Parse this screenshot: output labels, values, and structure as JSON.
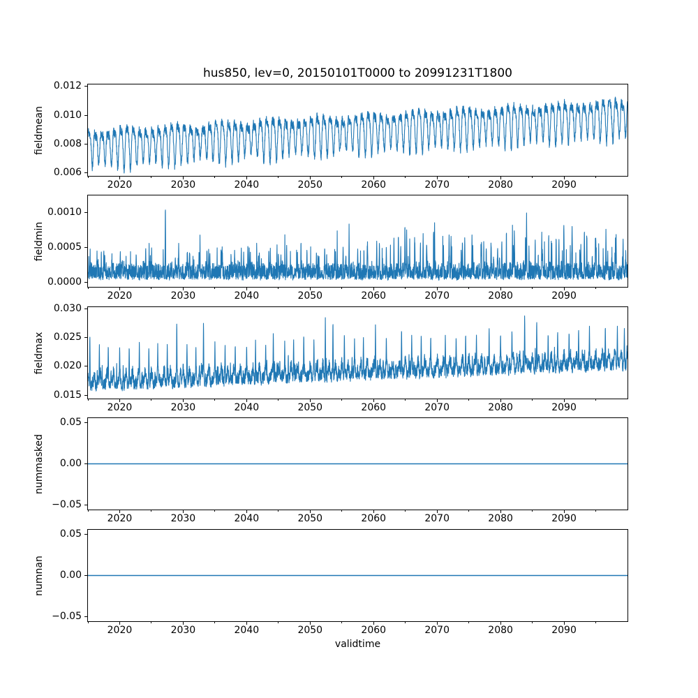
{
  "chart_data": {
    "type": "line",
    "title": "hus850, lev=0, 20150101T0000 to 20991231T1800",
    "xlabel": "validtime",
    "x_range": [
      2015,
      2100
    ],
    "x_major_ticks": [
      2020,
      2030,
      2040,
      2050,
      2060,
      2070,
      2080,
      2090
    ],
    "x_major_tick_labels": [
      "2020",
      "2030",
      "2040",
      "2050",
      "2060",
      "2070",
      "2080",
      "2090"
    ],
    "x_minor_tick_years": [
      2015,
      2025,
      2035,
      2045,
      2055,
      2065,
      2075,
      2085,
      2095
    ],
    "line_color": "#1f77b4",
    "axis_color": "#000000",
    "background_color": "#ffffff",
    "grid": false,
    "legend": null,
    "subplots": [
      {
        "ylabel": "fieldmean",
        "ylim": [
          0.00578,
          0.01214
        ],
        "yticks": [
          0.006,
          0.008,
          0.01,
          0.012
        ],
        "ytick_labels": [
          "0.006",
          "0.008",
          "0.010",
          "0.012"
        ],
        "series": {
          "kind": "seasonal_trend",
          "period_years": 1,
          "start_mean": 0.0079,
          "end_mean": 0.01,
          "annual_amplitude": 0.00115,
          "harmonic_amplitude": 0.00042,
          "noise": 0.00032,
          "annual_envelope_by_decade": {
            "years": [
              2015,
              2025,
              2035,
              2045,
              2055,
              2065,
              2075,
              2085,
              2095
            ],
            "trough": [
              0.0062,
              0.0063,
              0.0062,
              0.0066,
              0.0069,
              0.0071,
              0.0074,
              0.0077,
              0.0079
            ],
            "peak": [
              0.0096,
              0.0097,
              0.0099,
              0.0102,
              0.0105,
              0.011,
              0.0112,
              0.0115,
              0.0119
            ]
          }
        }
      },
      {
        "ylabel": "fieldmin",
        "ylim": [
          -6.5e-05,
          0.001245
        ],
        "yticks": [
          0.0,
          0.0005,
          0.001
        ],
        "ytick_labels": [
          "0.0000",
          "0.0005",
          "0.0010"
        ],
        "series": {
          "kind": "spiky_floor",
          "band": [
            0.0,
            0.0003
          ],
          "spike_growth_factor": 1.9,
          "notable_spikes": [
            [
              2017.5,
              0.00049
            ],
            [
              2020.1,
              0.00046
            ],
            [
              2022.6,
              0.00044
            ],
            [
              2024.1,
              0.00053
            ],
            [
              2027.2,
              0.00119
            ],
            [
              2029.3,
              0.00056
            ],
            [
              2031.0,
              0.00045
            ],
            [
              2032.5,
              0.00048
            ],
            [
              2034.2,
              0.00044
            ],
            [
              2036.0,
              0.0005
            ],
            [
              2038.1,
              0.00046
            ],
            [
              2040.2,
              0.00058
            ],
            [
              2042.0,
              0.00045
            ],
            [
              2043.5,
              0.0005
            ],
            [
              2045.0,
              0.00044
            ],
            [
              2046.3,
              0.00057
            ],
            [
              2048.0,
              0.00043
            ],
            [
              2049.5,
              0.00048
            ],
            [
              2051.0,
              0.00046
            ],
            [
              2052.3,
              0.00054
            ],
            [
              2054.0,
              0.00047
            ],
            [
              2055.2,
              0.00054
            ],
            [
              2057.5,
              0.0005
            ],
            [
              2059.0,
              0.00052
            ],
            [
              2060.5,
              0.00062
            ],
            [
              2062.0,
              0.00055
            ],
            [
              2063.2,
              0.00065
            ],
            [
              2065.2,
              0.00079
            ],
            [
              2066.5,
              0.00058
            ],
            [
              2067.8,
              0.0007
            ],
            [
              2069.6,
              0.0009
            ],
            [
              2071.0,
              0.0006
            ],
            [
              2072.2,
              0.00066
            ],
            [
              2074.0,
              0.00058
            ],
            [
              2075.5,
              0.00068
            ],
            [
              2077.0,
              0.0006
            ],
            [
              2078.5,
              0.00062
            ],
            [
              2080.2,
              0.00064
            ],
            [
              2082.0,
              0.0006
            ],
            [
              2084.1,
              0.00102
            ],
            [
              2086.5,
              0.00072
            ],
            [
              2088.0,
              0.00062
            ],
            [
              2089.2,
              0.00066
            ],
            [
              2091.3,
              0.0007
            ],
            [
              2093.2,
              0.00082
            ],
            [
              2095.0,
              0.0007
            ],
            [
              2096.6,
              0.00078
            ],
            [
              2098.2,
              0.00072
            ],
            [
              2099.3,
              0.00065
            ]
          ]
        }
      },
      {
        "ylabel": "fieldmax",
        "ylim": [
          0.0144,
          0.03034
        ],
        "yticks": [
          0.015,
          0.02,
          0.025,
          0.03
        ],
        "ytick_labels": [
          "0.015",
          "0.020",
          "0.025",
          "0.030"
        ],
        "series": {
          "kind": "seasonal_spiky_max",
          "floor_start": 0.0155,
          "floor_end": 0.0192,
          "envelope_by_decade": {
            "years": [
              2015,
              2025,
              2035,
              2045,
              2055,
              2065,
              2075,
              2085,
              2095
            ],
            "floor": [
              0.0155,
              0.0157,
              0.016,
              0.0164,
              0.017,
              0.0175,
              0.0181,
              0.0187,
              0.0191
            ],
            "typical_peak": [
              0.0225,
              0.0222,
              0.0228,
              0.0232,
              0.0238,
              0.0243,
              0.0247,
              0.0252,
              0.0258
            ]
          },
          "notable_spikes": [
            [
              2015.3,
              0.0261
            ],
            [
              2016.8,
              0.0242
            ],
            [
              2018.2,
              0.0243
            ],
            [
              2020.0,
              0.0238
            ],
            [
              2021.5,
              0.024
            ],
            [
              2023.1,
              0.0246
            ],
            [
              2024.6,
              0.0238
            ],
            [
              2026.0,
              0.024
            ],
            [
              2027.5,
              0.0242
            ],
            [
              2029.0,
              0.0286
            ],
            [
              2030.6,
              0.024
            ],
            [
              2032.0,
              0.0238
            ],
            [
              2033.2,
              0.0284
            ],
            [
              2035.0,
              0.0245
            ],
            [
              2036.6,
              0.024
            ],
            [
              2038.2,
              0.0243
            ],
            [
              2040.0,
              0.024
            ],
            [
              2041.4,
              0.0246
            ],
            [
              2043.0,
              0.0242
            ],
            [
              2044.2,
              0.0264
            ],
            [
              2046.0,
              0.0246
            ],
            [
              2047.4,
              0.0252
            ],
            [
              2049.0,
              0.0262
            ],
            [
              2050.6,
              0.025
            ],
            [
              2052.4,
              0.0285
            ],
            [
              2053.6,
              0.0287
            ],
            [
              2055.4,
              0.0262
            ],
            [
              2057.0,
              0.025
            ],
            [
              2058.4,
              0.0256
            ],
            [
              2060.3,
              0.0275
            ],
            [
              2062.0,
              0.0256
            ],
            [
              2064.4,
              0.0272
            ],
            [
              2066.0,
              0.0258
            ],
            [
              2067.5,
              0.026
            ],
            [
              2069.0,
              0.0258
            ],
            [
              2071.3,
              0.0256
            ],
            [
              2073.0,
              0.0255
            ],
            [
              2074.5,
              0.0262
            ],
            [
              2076.2,
              0.0258
            ],
            [
              2078.2,
              0.0272
            ],
            [
              2080.0,
              0.0262
            ],
            [
              2081.8,
              0.0268
            ],
            [
              2083.8,
              0.0296
            ],
            [
              2085.7,
              0.0286
            ],
            [
              2087.5,
              0.0262
            ],
            [
              2089.0,
              0.0266
            ],
            [
              2090.8,
              0.0265
            ],
            [
              2092.3,
              0.027
            ],
            [
              2094.0,
              0.0272
            ],
            [
              2096.5,
              0.0276
            ],
            [
              2098.4,
              0.0272
            ],
            [
              2099.5,
              0.0268
            ]
          ]
        }
      },
      {
        "ylabel": "nummasked",
        "ylim": [
          -0.0555,
          0.0555
        ],
        "yticks": [
          -0.05,
          0.0,
          0.05
        ],
        "ytick_labels": [
          "−0.05",
          "0.00",
          "0.05"
        ],
        "series": {
          "kind": "constant",
          "value": 0.0
        }
      },
      {
        "ylabel": "numnan",
        "ylim": [
          -0.0555,
          0.0555
        ],
        "yticks": [
          -0.05,
          0.0,
          0.05
        ],
        "ytick_labels": [
          "−0.05",
          "0.00",
          "0.05"
        ],
        "series": {
          "kind": "constant",
          "value": 0.0
        }
      }
    ]
  }
}
